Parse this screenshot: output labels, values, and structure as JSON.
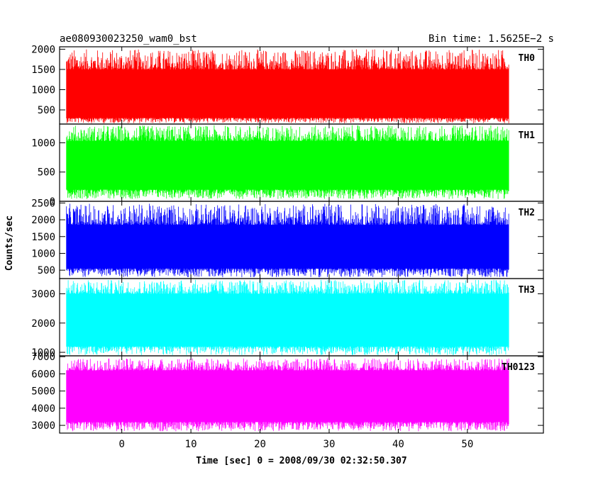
{
  "chart_data": {
    "type": "line",
    "title_left": "ae080930023250_wam0_bst",
    "title_right": "Bin time: 1.5625E−2 s",
    "xlabel": "Time [sec] 0 = 2008/09/30 02:32:50.307",
    "ylabel": "Counts/sec",
    "xlim": [
      -9,
      61
    ],
    "x_data_range": [
      -8,
      56
    ],
    "x_ticks": [
      0,
      10,
      20,
      30,
      40,
      50
    ],
    "panels": [
      {
        "name": "TH0",
        "color": "#ff0000",
        "ylim": [
          150,
          2060
        ],
        "y_ticks": [
          500,
          1000,
          1500,
          2000
        ],
        "band": {
          "low": 300,
          "high": 1500,
          "min": 170,
          "max": 2000
        }
      },
      {
        "name": "TH1",
        "color": "#00ff00",
        "ylim": [
          0,
          1320
        ],
        "y_ticks": [
          0,
          500,
          1000
        ],
        "band": {
          "low": 200,
          "high": 1030,
          "min": 40,
          "max": 1300
        }
      },
      {
        "name": "TH2",
        "color": "#0000ff",
        "ylim": [
          250,
          2550
        ],
        "y_ticks": [
          500,
          1000,
          1500,
          2000,
          2500
        ],
        "band": {
          "low": 550,
          "high": 1850,
          "min": 290,
          "max": 2480
        }
      },
      {
        "name": "TH3",
        "color": "#00ffff",
        "ylim": [
          880,
          3520
        ],
        "y_ticks": [
          1000,
          2000,
          3000
        ],
        "band": {
          "low": 1200,
          "high": 3000,
          "min": 900,
          "max": 3480
        }
      },
      {
        "name": "TH0123",
        "color": "#ff00ff",
        "ylim": [
          2550,
          7050
        ],
        "y_ticks": [
          3000,
          4000,
          5000,
          6000,
          7000
        ],
        "band": {
          "low": 3200,
          "high": 6200,
          "min": 2650,
          "max": 6900
        }
      }
    ]
  }
}
